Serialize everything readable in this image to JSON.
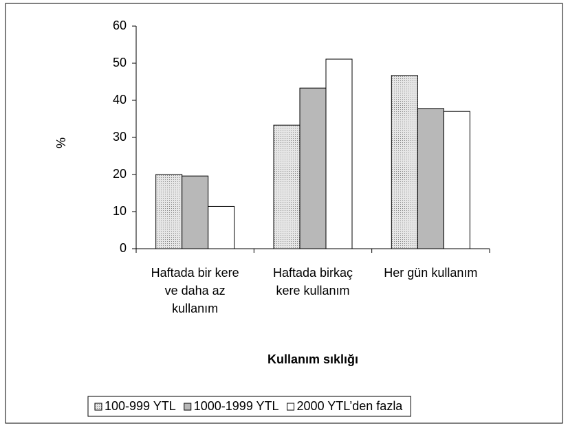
{
  "chart_data": {
    "type": "bar",
    "categories": [
      "Haftada bir kere ve daha az kullanım",
      "Haftada birkaç kere kullanım",
      "Her gün kullanım"
    ],
    "series": [
      {
        "name": "100-999 YTL",
        "color": "#d4d4d4",
        "values": [
          20.0,
          33.3,
          46.7
        ]
      },
      {
        "name": "1000-1999 YTL",
        "color": "#b8b8b8",
        "values": [
          19.6,
          43.3,
          37.8
        ]
      },
      {
        "name": "2000 YTL’den fazla",
        "color": "#ffffff",
        "values": [
          11.4,
          51.1,
          37.0
        ]
      }
    ],
    "x_label": "Kullanım sıklığı",
    "y_label": "%",
    "ylim": [
      0,
      60
    ],
    "yticks": [
      0,
      10,
      20,
      30,
      40,
      50,
      60
    ],
    "legend": "bottom"
  }
}
